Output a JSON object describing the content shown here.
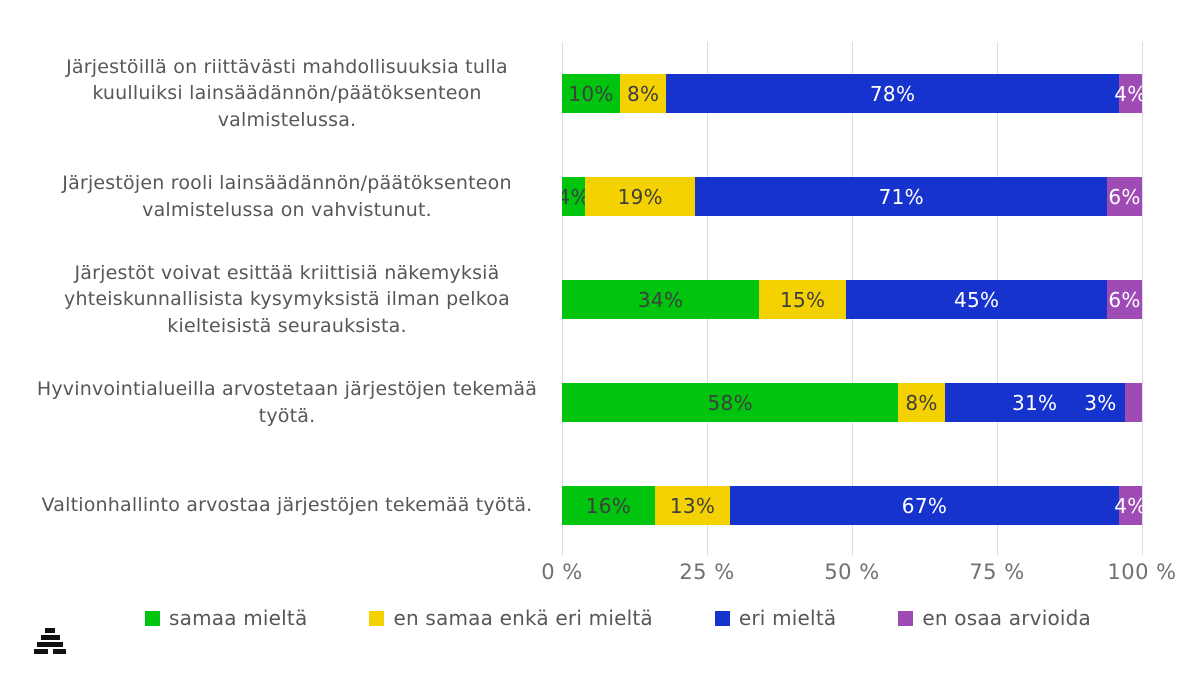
{
  "chart_data": {
    "type": "bar",
    "variant": "horizontal-stacked",
    "title": "",
    "categories": [
      "Järjestöillä on riittävästi mahdollisuuksia tulla kuulluiksi lainsäädännön/päätöksenteon valmistelussa.",
      "Järjestöjen rooli lainsäädännön/päätöksenteon valmistelussa on vahvistunut.",
      "Järjestöt voivat esittää kriittisiä näkemyksiä yhteiskunnallisista kysymyksistä ilman pelkoa kielteisistä seurauksista.",
      "Hyvinvointialueilla arvostetaan järjestöjen tekemää työtä.",
      "Valtionhallinto arvostaa järjestöjen tekemää työtä."
    ],
    "series": [
      {
        "name": "samaa mieltä",
        "color": "#00C40D",
        "values": [
          10,
          4,
          34,
          58,
          16
        ]
      },
      {
        "name": "en samaa enkä eri mieltä",
        "color": "#F4D100",
        "values": [
          8,
          19,
          15,
          8,
          13
        ]
      },
      {
        "name": "eri mieltä",
        "color": "#1733CE",
        "values": [
          78,
          71,
          45,
          31,
          67
        ]
      },
      {
        "name": "en osaa arvioida",
        "color": "#9E4BB5",
        "values": [
          4,
          6,
          6,
          3,
          4
        ]
      }
    ],
    "x_ticks": [
      "0 %",
      "25 %",
      "50 %",
      "75 %",
      "100 %"
    ],
    "xlim": [
      0,
      100
    ],
    "grid": "vertical-only",
    "legend_position": "bottom",
    "value_suffix": "%",
    "value_label_colors": {
      "on_light": "#3E3F41",
      "on_dark": "#FFFFFF"
    }
  },
  "colors": {
    "grid": "#DADCE0",
    "category_text": "#56575B",
    "tick_text": "#6F7173",
    "legend_text": "#56575B",
    "logo": "#111111",
    "background": "#FFFFFF"
  }
}
